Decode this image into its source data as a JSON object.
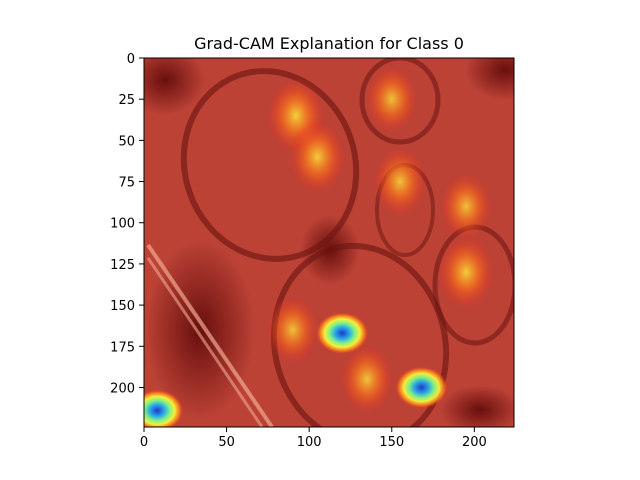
{
  "chart_data": {
    "type": "heatmap",
    "title": "Grad-CAM Explanation for Class 0",
    "xlabel": "",
    "ylabel": "",
    "xlim": [
      0,
      224
    ],
    "ylim": [
      224,
      0
    ],
    "xticks": [
      0,
      50,
      100,
      150,
      200
    ],
    "yticks": [
      0,
      25,
      50,
      75,
      100,
      125,
      150,
      175,
      200
    ],
    "grid": false,
    "colormap": "jet",
    "overlay_base": "food photo: two plates of roasted meat with chopsticks and small bowls",
    "hotspots": [
      {
        "x": 92,
        "y": 35,
        "intensity": 0.75
      },
      {
        "x": 105,
        "y": 60,
        "intensity": 0.7
      },
      {
        "x": 150,
        "y": 25,
        "intensity": 0.55
      },
      {
        "x": 155,
        "y": 75,
        "intensity": 0.6
      },
      {
        "x": 195,
        "y": 90,
        "intensity": 0.55
      },
      {
        "x": 195,
        "y": 130,
        "intensity": 0.7
      },
      {
        "x": 120,
        "y": 167,
        "intensity": 1.0
      },
      {
        "x": 168,
        "y": 200,
        "intensity": 0.95
      },
      {
        "x": 8,
        "y": 214,
        "intensity": 1.0
      },
      {
        "x": 90,
        "y": 165,
        "intensity": 0.55
      },
      {
        "x": 135,
        "y": 195,
        "intensity": 0.6
      }
    ]
  }
}
